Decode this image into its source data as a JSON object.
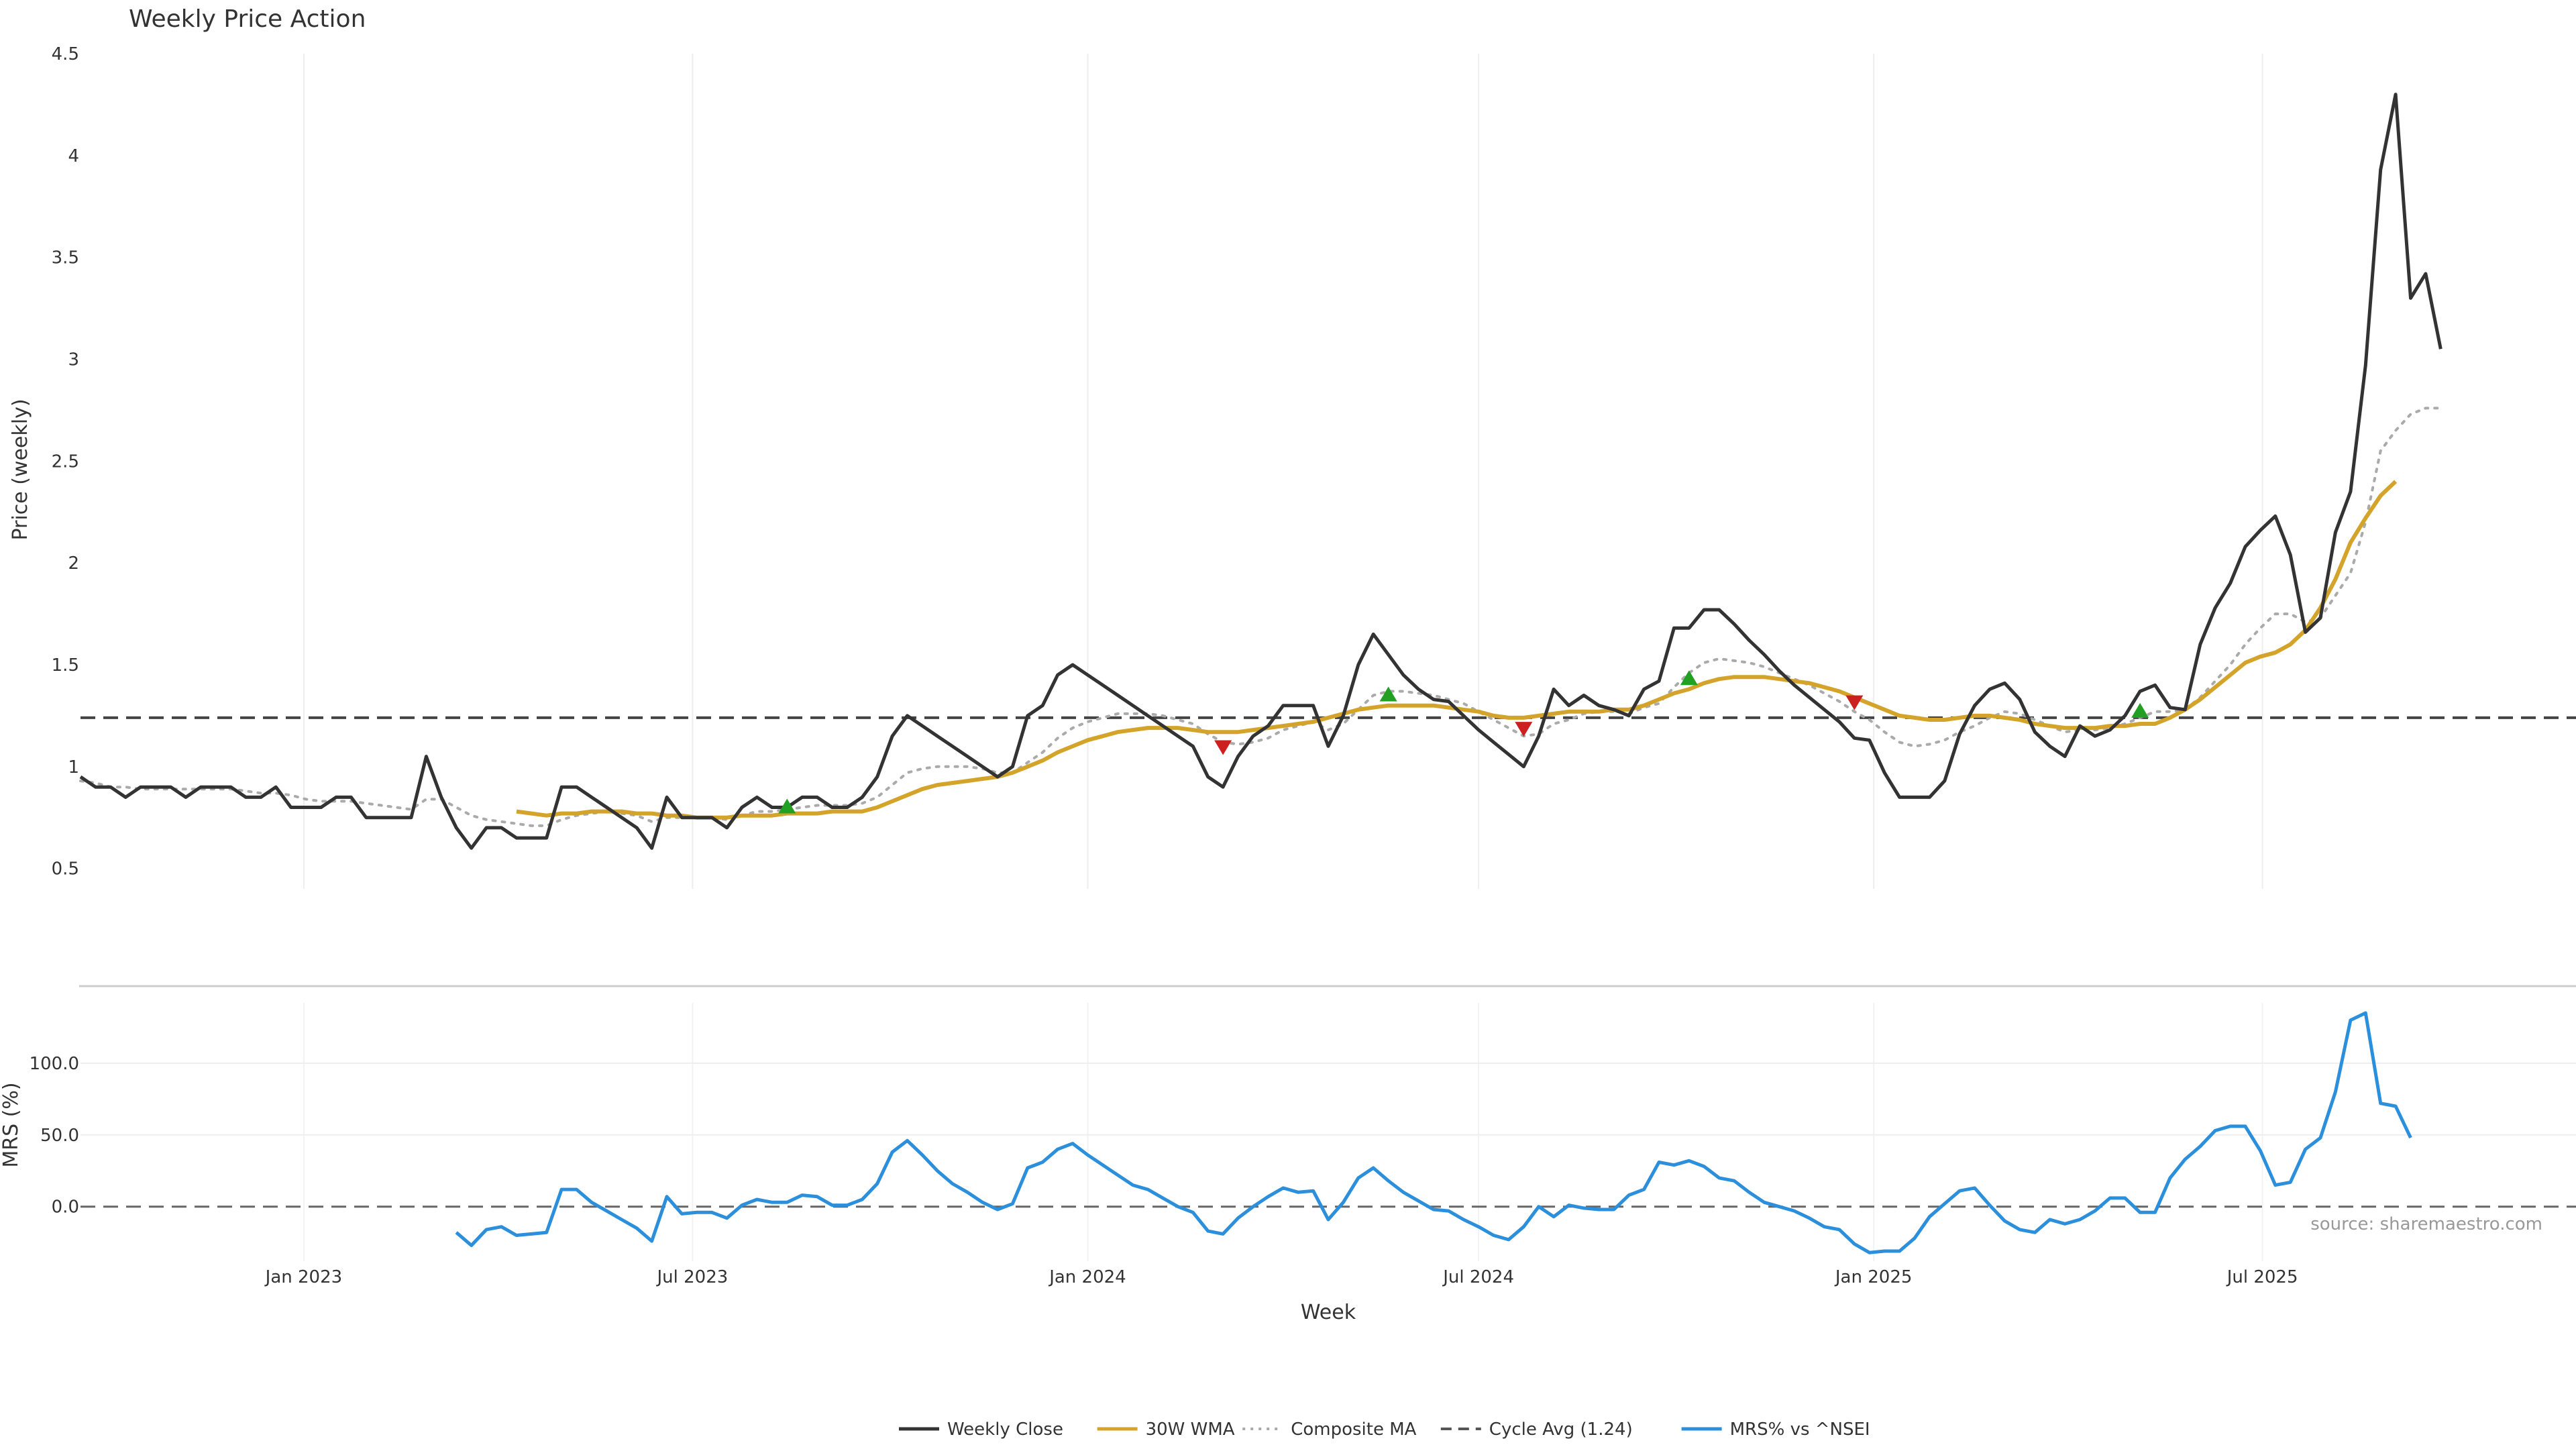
{
  "chart_data": {
    "type": "line",
    "title": "Weekly Price Action",
    "xlabel": "Week",
    "x_start": "2022-09-19",
    "x_range": [
      "2022-09-19",
      "2025-11-24"
    ],
    "x_ticks": [
      {
        "date": "2023-01-01",
        "label": "Jan 2023"
      },
      {
        "date": "2023-07-01",
        "label": "Jul 2023"
      },
      {
        "date": "2024-01-01",
        "label": "Jan 2024"
      },
      {
        "date": "2024-07-01",
        "label": "Jul 2024"
      },
      {
        "date": "2025-01-01",
        "label": "Jan 2025"
      },
      {
        "date": "2025-07-01",
        "label": "Jul 2025"
      }
    ],
    "price_panel": {
      "ylabel": "Price (weekly)",
      "ylim": [
        0.4,
        4.5
      ],
      "yticks": [
        {
          "v": 0.5,
          "label": "0.5"
        },
        {
          "v": 1,
          "label": "1"
        },
        {
          "v": 1.5,
          "label": "1.5"
        },
        {
          "v": 2,
          "label": "2"
        },
        {
          "v": 2.5,
          "label": "2.5"
        },
        {
          "v": 3,
          "label": "3"
        },
        {
          "v": 3.5,
          "label": "3.5"
        },
        {
          "v": 4,
          "label": "4"
        },
        {
          "v": 4.5,
          "label": "4.5"
        }
      ],
      "cycle_avg": 1.24,
      "series": {
        "weekly_close": {
          "name": "Weekly Close",
          "color": "#333333",
          "start_week": 0,
          "values": [
            0.95,
            0.9,
            0.9,
            0.85,
            0.9,
            0.9,
            0.9,
            0.85,
            0.9,
            0.9,
            0.9,
            0.85,
            0.85,
            0.9,
            0.8,
            0.8,
            0.8,
            0.85,
            0.85,
            0.75,
            0.75,
            0.75,
            0.75,
            1.05,
            0.85,
            0.7,
            0.6,
            0.7,
            0.7,
            0.65,
            0.65,
            0.65,
            0.9,
            0.9,
            0.85,
            0.8,
            0.75,
            0.7,
            0.6,
            0.85,
            0.75,
            0.75,
            0.75,
            0.7,
            0.8,
            0.85,
            0.8,
            0.8,
            0.85,
            0.85,
            0.8,
            0.8,
            0.85,
            0.95,
            1.15,
            1.25,
            1.2,
            1.15,
            1.1,
            1.05,
            1.0,
            0.95,
            1.0,
            1.25,
            1.3,
            1.45,
            1.5,
            1.45,
            1.4,
            1.35,
            1.3,
            1.25,
            1.2,
            1.15,
            1.1,
            0.95,
            0.9,
            1.05,
            1.15,
            1.2,
            1.3,
            1.3,
            1.3,
            1.1,
            1.25,
            1.5,
            1.65,
            1.55,
            1.45,
            1.38,
            1.33,
            1.32,
            1.25,
            1.18,
            1.12,
            1.06,
            1.0,
            1.15,
            1.38,
            1.3,
            1.35,
            1.3,
            1.28,
            1.25,
            1.38,
            1.42,
            1.68,
            1.68,
            1.77,
            1.77,
            1.7,
            1.62,
            1.55,
            1.47,
            1.4,
            1.34,
            1.28,
            1.22,
            1.14,
            1.13,
            0.97,
            0.85,
            0.85,
            0.85,
            0.93,
            1.16,
            1.3,
            1.38,
            1.41,
            1.33,
            1.17,
            1.1,
            1.05,
            1.2,
            1.15,
            1.18,
            1.25,
            1.37,
            1.4,
            1.29,
            1.28,
            1.6,
            1.78,
            1.9,
            2.08,
            2.16,
            2.23,
            2.04,
            1.66,
            1.73,
            2.15,
            2.35,
            2.97,
            3.93,
            4.3,
            3.3,
            3.42,
            3.05
          ]
        },
        "wma_30w": {
          "name": "30W WMA",
          "color": "#d4a42a",
          "start_week": 29,
          "values": [
            0.78,
            0.77,
            0.76,
            0.77,
            0.77,
            0.78,
            0.78,
            0.78,
            0.77,
            0.77,
            0.76,
            0.76,
            0.75,
            0.75,
            0.75,
            0.76,
            0.76,
            0.76,
            0.77,
            0.77,
            0.77,
            0.78,
            0.78,
            0.78,
            0.8,
            0.83,
            0.86,
            0.89,
            0.91,
            0.92,
            0.93,
            0.94,
            0.95,
            0.97,
            1.0,
            1.03,
            1.07,
            1.1,
            1.13,
            1.15,
            1.17,
            1.18,
            1.19,
            1.19,
            1.19,
            1.18,
            1.17,
            1.17,
            1.17,
            1.18,
            1.19,
            1.2,
            1.21,
            1.22,
            1.24,
            1.26,
            1.28,
            1.29,
            1.3,
            1.3,
            1.3,
            1.3,
            1.29,
            1.28,
            1.27,
            1.25,
            1.24,
            1.24,
            1.25,
            1.26,
            1.27,
            1.27,
            1.27,
            1.28,
            1.28,
            1.3,
            1.33,
            1.36,
            1.38,
            1.41,
            1.43,
            1.44,
            1.44,
            1.44,
            1.43,
            1.42,
            1.41,
            1.39,
            1.37,
            1.34,
            1.31,
            1.28,
            1.25,
            1.24,
            1.23,
            1.23,
            1.24,
            1.25,
            1.25,
            1.24,
            1.23,
            1.21,
            1.2,
            1.19,
            1.19,
            1.19,
            1.2,
            1.2,
            1.21,
            1.21,
            1.24,
            1.28,
            1.33,
            1.39,
            1.45,
            1.51,
            1.54,
            1.56,
            1.6,
            1.67,
            1.78,
            1.92,
            2.1,
            2.22,
            2.33,
            2.4
          ]
        },
        "composite_ma": {
          "name": "Composite MA",
          "color": "#aaaaaa",
          "start_week": 0,
          "values": [
            0.93,
            0.92,
            0.9,
            0.9,
            0.89,
            0.89,
            0.89,
            0.89,
            0.89,
            0.89,
            0.89,
            0.88,
            0.87,
            0.87,
            0.86,
            0.84,
            0.83,
            0.83,
            0.83,
            0.82,
            0.81,
            0.8,
            0.79,
            0.84,
            0.84,
            0.8,
            0.76,
            0.74,
            0.73,
            0.72,
            0.71,
            0.71,
            0.74,
            0.76,
            0.77,
            0.78,
            0.77,
            0.76,
            0.73,
            0.75,
            0.75,
            0.75,
            0.75,
            0.74,
            0.76,
            0.78,
            0.78,
            0.79,
            0.8,
            0.81,
            0.81,
            0.81,
            0.82,
            0.85,
            0.91,
            0.97,
            0.99,
            1.0,
            1.0,
            1.0,
            0.99,
            0.97,
            0.97,
            1.02,
            1.07,
            1.14,
            1.19,
            1.22,
            1.24,
            1.26,
            1.26,
            1.26,
            1.25,
            1.23,
            1.21,
            1.16,
            1.12,
            1.11,
            1.12,
            1.14,
            1.18,
            1.2,
            1.22,
            1.18,
            1.21,
            1.28,
            1.35,
            1.37,
            1.37,
            1.36,
            1.35,
            1.33,
            1.31,
            1.27,
            1.23,
            1.19,
            1.15,
            1.16,
            1.21,
            1.23,
            1.26,
            1.27,
            1.27,
            1.26,
            1.29,
            1.31,
            1.39,
            1.46,
            1.51,
            1.53,
            1.52,
            1.51,
            1.49,
            1.46,
            1.43,
            1.4,
            1.36,
            1.32,
            1.27,
            1.23,
            1.17,
            1.12,
            1.1,
            1.11,
            1.13,
            1.17,
            1.2,
            1.24,
            1.27,
            1.26,
            1.23,
            1.2,
            1.17,
            1.18,
            1.18,
            1.19,
            1.21,
            1.24,
            1.27,
            1.27,
            1.28,
            1.34,
            1.42,
            1.5,
            1.6,
            1.68,
            1.75,
            1.75,
            1.71,
            1.73,
            1.84,
            1.95,
            2.2,
            2.55,
            2.65,
            2.73,
            2.76,
            2.76
          ]
        }
      },
      "markers": {
        "up": {
          "color": "#22a022",
          "points": [
            [
              47,
              0.8
            ],
            [
              87,
              1.35
            ],
            [
              107,
              1.43
            ],
            [
              137,
              1.27
            ]
          ]
        },
        "down": {
          "color": "#cc2020",
          "points": [
            [
              76,
              1.1
            ],
            [
              96,
              1.19
            ],
            [
              118,
              1.32
            ]
          ]
        }
      }
    },
    "mrs_panel": {
      "ylabel": "MRS (%)",
      "ylim": [
        -38,
        142
      ],
      "yticks": [
        {
          "v": 0,
          "label": "0.0"
        },
        {
          "v": 50,
          "label": "50.0"
        },
        {
          "v": 100,
          "label": "100.0"
        }
      ],
      "zero_line": 0,
      "series": {
        "mrs": {
          "name": "MRS% vs ^NSEI",
          "color": "#2b8fdc",
          "start_week": 25,
          "values": [
            -18,
            -27,
            -16,
            -14,
            -20,
            -19,
            -18,
            12,
            12,
            3,
            -3,
            -9,
            -15,
            -24,
            7,
            -5,
            -4,
            -4,
            -8,
            1,
            5,
            3,
            3,
            8,
            7,
            1,
            1,
            5,
            16,
            38,
            46,
            36,
            25,
            16,
            10,
            3,
            -2,
            2,
            27,
            31,
            40,
            44,
            36,
            29,
            22,
            15,
            12,
            6,
            0,
            -4,
            -17,
            -19,
            -8,
            0,
            7,
            13,
            10,
            11,
            -9,
            3,
            20,
            27,
            18,
            10,
            4,
            -2,
            -3,
            -9,
            -14,
            -20,
            -23,
            -14,
            0,
            -7,
            1,
            -1,
            -2,
            -2,
            8,
            12,
            31,
            29,
            32,
            28,
            20,
            18,
            10,
            3,
            0,
            -3,
            -8,
            -14,
            -16,
            -26,
            -32,
            -31,
            -31,
            -22,
            -7,
            2,
            11,
            13,
            1,
            -10,
            -16,
            -18,
            -9,
            -12,
            -9,
            -3,
            6,
            6,
            -4,
            -4,
            20,
            33,
            42,
            53,
            56,
            56,
            39,
            15,
            17,
            40,
            48,
            80,
            130,
            135,
            72,
            70,
            48
          ]
        }
      },
      "source": "source: sharemaestro.com"
    },
    "legend": [
      {
        "name": "Weekly Close",
        "color": "#333333",
        "style": "solid"
      },
      {
        "name": "30W WMA",
        "color": "#d4a42a",
        "style": "solid"
      },
      {
        "name": "Composite MA",
        "color": "#aaaaaa",
        "style": "dotted"
      },
      {
        "name": "Cycle Avg (1.24)",
        "color": "#555555",
        "style": "dashed"
      },
      {
        "name": "MRS% vs ^NSEI",
        "color": "#2b8fdc",
        "style": "solid"
      }
    ]
  }
}
